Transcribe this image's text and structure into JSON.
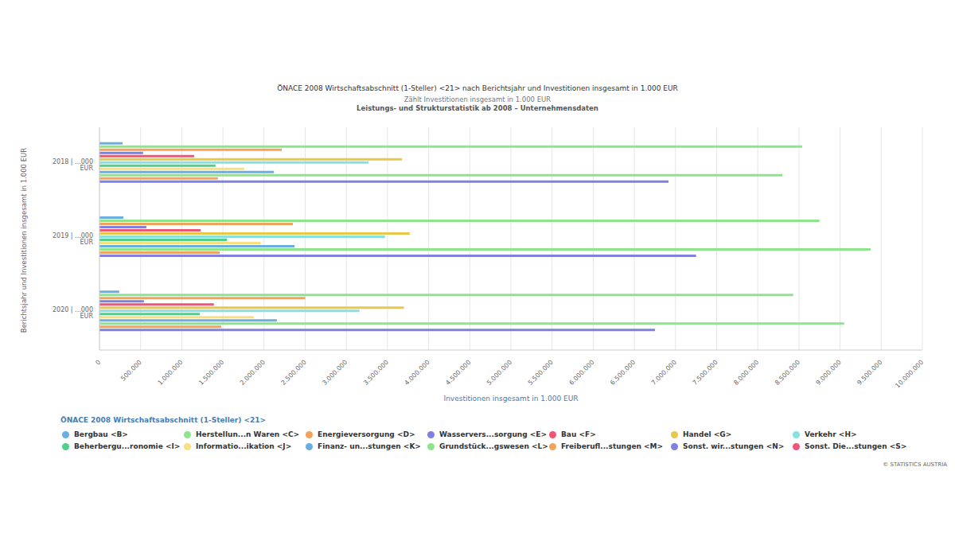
{
  "chart_data": {
    "type": "bar",
    "orientation": "horizontal",
    "grid": true,
    "title": "ÖNACE 2008 Wirtschaftsabschnitt (1-Steller) <21> nach Berichtsjahr und Investitionen insgesamt in 1.000 EUR",
    "subtitle": "Zählt Investitionen insgesamt in 1.000 EUR",
    "subtitle2": "Leistungs- und Strukturstatistik ab 2008 – Unternehmensdaten",
    "x_label": "Investitionen insgesamt in 1.000 EUR",
    "y_label": "Berichtsjahr und Investitionen insgesamt in 1.000 EUR",
    "legend_title": "ÖNACE 2008 Wirtschaftsabschnitt (1-Steller) <21>",
    "legend": "bottom",
    "source": "© STATISTICS AUSTRIA",
    "categories": [
      "2018 | ...000 EUR",
      "2019 | ...000 EUR",
      "2020 | ...000 EUR"
    ],
    "xlim": [
      0,
      10000000
    ],
    "xticks": [
      0,
      {
        "value": 500000,
        "label": "500.000"
      },
      {
        "value": 1000000,
        "label": "1.000.000"
      },
      {
        "value": 1500000,
        "label": "1.500.000"
      },
      {
        "value": 2000000,
        "label": "2.000.000"
      },
      {
        "value": 2500000,
        "label": "2.500.000"
      },
      {
        "value": 3000000,
        "label": "3.000.000"
      },
      {
        "value": 3500000,
        "label": "3.500.000"
      },
      {
        "value": 4000000,
        "label": "4.000.000"
      },
      {
        "value": 4500000,
        "label": "4.500.000"
      },
      {
        "value": 5000000,
        "label": "5.000.000"
      },
      {
        "value": 5500000,
        "label": "5.500.000"
      },
      {
        "value": 6000000,
        "label": "6.000.000"
      },
      {
        "value": 6500000,
        "label": "6.500.000"
      },
      {
        "value": 7000000,
        "label": "7.000.000"
      },
      {
        "value": 7500000,
        "label": "7.500.000"
      },
      {
        "value": 8000000,
        "label": "8.000.000"
      },
      {
        "value": 8500000,
        "label": "8.500.000"
      },
      {
        "value": 9000000,
        "label": "9.000.000"
      },
      {
        "value": 9500000,
        "label": "9.500.000"
      },
      {
        "value": 10000000,
        "label": "10.000.000"
      }
    ],
    "series": [
      {
        "name": "Bergbau <B>",
        "color": "#6aaee0",
        "values": [
          280000,
          290000,
          240000
        ]
      },
      {
        "name": "Herstellun...n Waren <C>",
        "color": "#8ee48a",
        "values": [
          8540000,
          8750000,
          8430000
        ]
      },
      {
        "name": "Energieversorgung <D>",
        "color": "#f2a25a",
        "values": [
          2215000,
          2350000,
          2500000
        ]
      },
      {
        "name": "Wasservers...sorgung <E>",
        "color": "#8080e0",
        "values": [
          530000,
          570000,
          540000
        ]
      },
      {
        "name": "Bau <F>",
        "color": "#ee5577",
        "values": [
          1150000,
          1230000,
          1390000
        ]
      },
      {
        "name": "Handel <G>",
        "color": "#e8c84a",
        "values": [
          3675000,
          3770000,
          3700000
        ]
      },
      {
        "name": "Verkehr <H>",
        "color": "#88e0e0",
        "values": [
          3270000,
          3470000,
          3160000
        ]
      },
      {
        "name": "Beherbergu...ronomie <I>",
        "color": "#4ed08a",
        "values": [
          1410000,
          1550000,
          1220000
        ]
      },
      {
        "name": "Informatio...ikation <J>",
        "color": "#f8e080",
        "values": [
          1760000,
          1960000,
          1875000
        ]
      },
      {
        "name": "Finanz- un...stungen <K>",
        "color": "#6aaee0",
        "values": [
          2120000,
          2370000,
          2155000
        ]
      },
      {
        "name": "Grundstück...gswesen <L>",
        "color": "#8ee48a",
        "values": [
          8300000,
          9370000,
          9050000
        ]
      },
      {
        "name": "Freiberufl...stungen <M>",
        "color": "#f2a25a",
        "values": [
          1440000,
          1460000,
          1480000
        ]
      },
      {
        "name": "Sonst. wir...stungen <N>",
        "color": "#8080e0",
        "values": [
          6915000,
          7250000,
          6750000
        ]
      },
      {
        "name": "Sonst. Die...stungen <S>",
        "color": "#ee5577",
        "values": [
          null,
          null,
          null
        ]
      }
    ]
  }
}
